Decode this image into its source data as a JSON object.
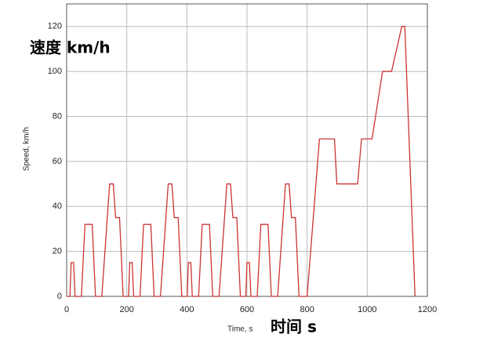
{
  "chart_data": {
    "type": "line",
    "annotations": [
      "速度 km/h",
      "时间 s"
    ],
    "xlabel": "Time, s",
    "ylabel": "Speed, km/h",
    "xlim": [
      0,
      1200
    ],
    "xticks": [
      0,
      200,
      400,
      600,
      800,
      1000,
      1200
    ],
    "ylim": [
      0,
      130
    ],
    "yticks": [
      0,
      20,
      40,
      60,
      80,
      100,
      120
    ],
    "grid": true,
    "x": [
      0,
      11,
      15,
      23,
      28,
      49,
      61,
      85,
      96,
      117,
      143,
      155,
      163,
      176,
      188,
      195,
      206,
      210,
      218,
      223,
      244,
      256,
      280,
      291,
      312,
      338,
      350,
      358,
      371,
      383,
      390,
      401,
      405,
      413,
      418,
      439,
      451,
      475,
      486,
      507,
      533,
      545,
      553,
      566,
      578,
      585,
      596,
      600,
      608,
      613,
      634,
      646,
      670,
      681,
      702,
      728,
      740,
      748,
      761,
      773,
      800,
      841,
      891,
      899,
      968,
      981,
      1016,
      1051,
      1081,
      1115,
      1125,
      1159
    ],
    "series": [
      {
        "name": "Speed",
        "color": "#cc3333",
        "values": [
          0,
          0,
          15,
          15,
          0,
          0,
          32,
          32,
          0,
          0,
          50,
          50,
          35,
          35,
          0,
          0,
          0,
          15,
          15,
          0,
          0,
          32,
          32,
          0,
          0,
          50,
          50,
          35,
          35,
          0,
          0,
          0,
          15,
          15,
          0,
          0,
          32,
          32,
          0,
          0,
          50,
          50,
          35,
          35,
          0,
          0,
          0,
          15,
          15,
          0,
          0,
          32,
          32,
          0,
          0,
          50,
          50,
          35,
          35,
          0,
          0,
          70,
          70,
          50,
          50,
          70,
          70,
          100,
          100,
          120,
          120,
          0
        ]
      }
    ]
  }
}
